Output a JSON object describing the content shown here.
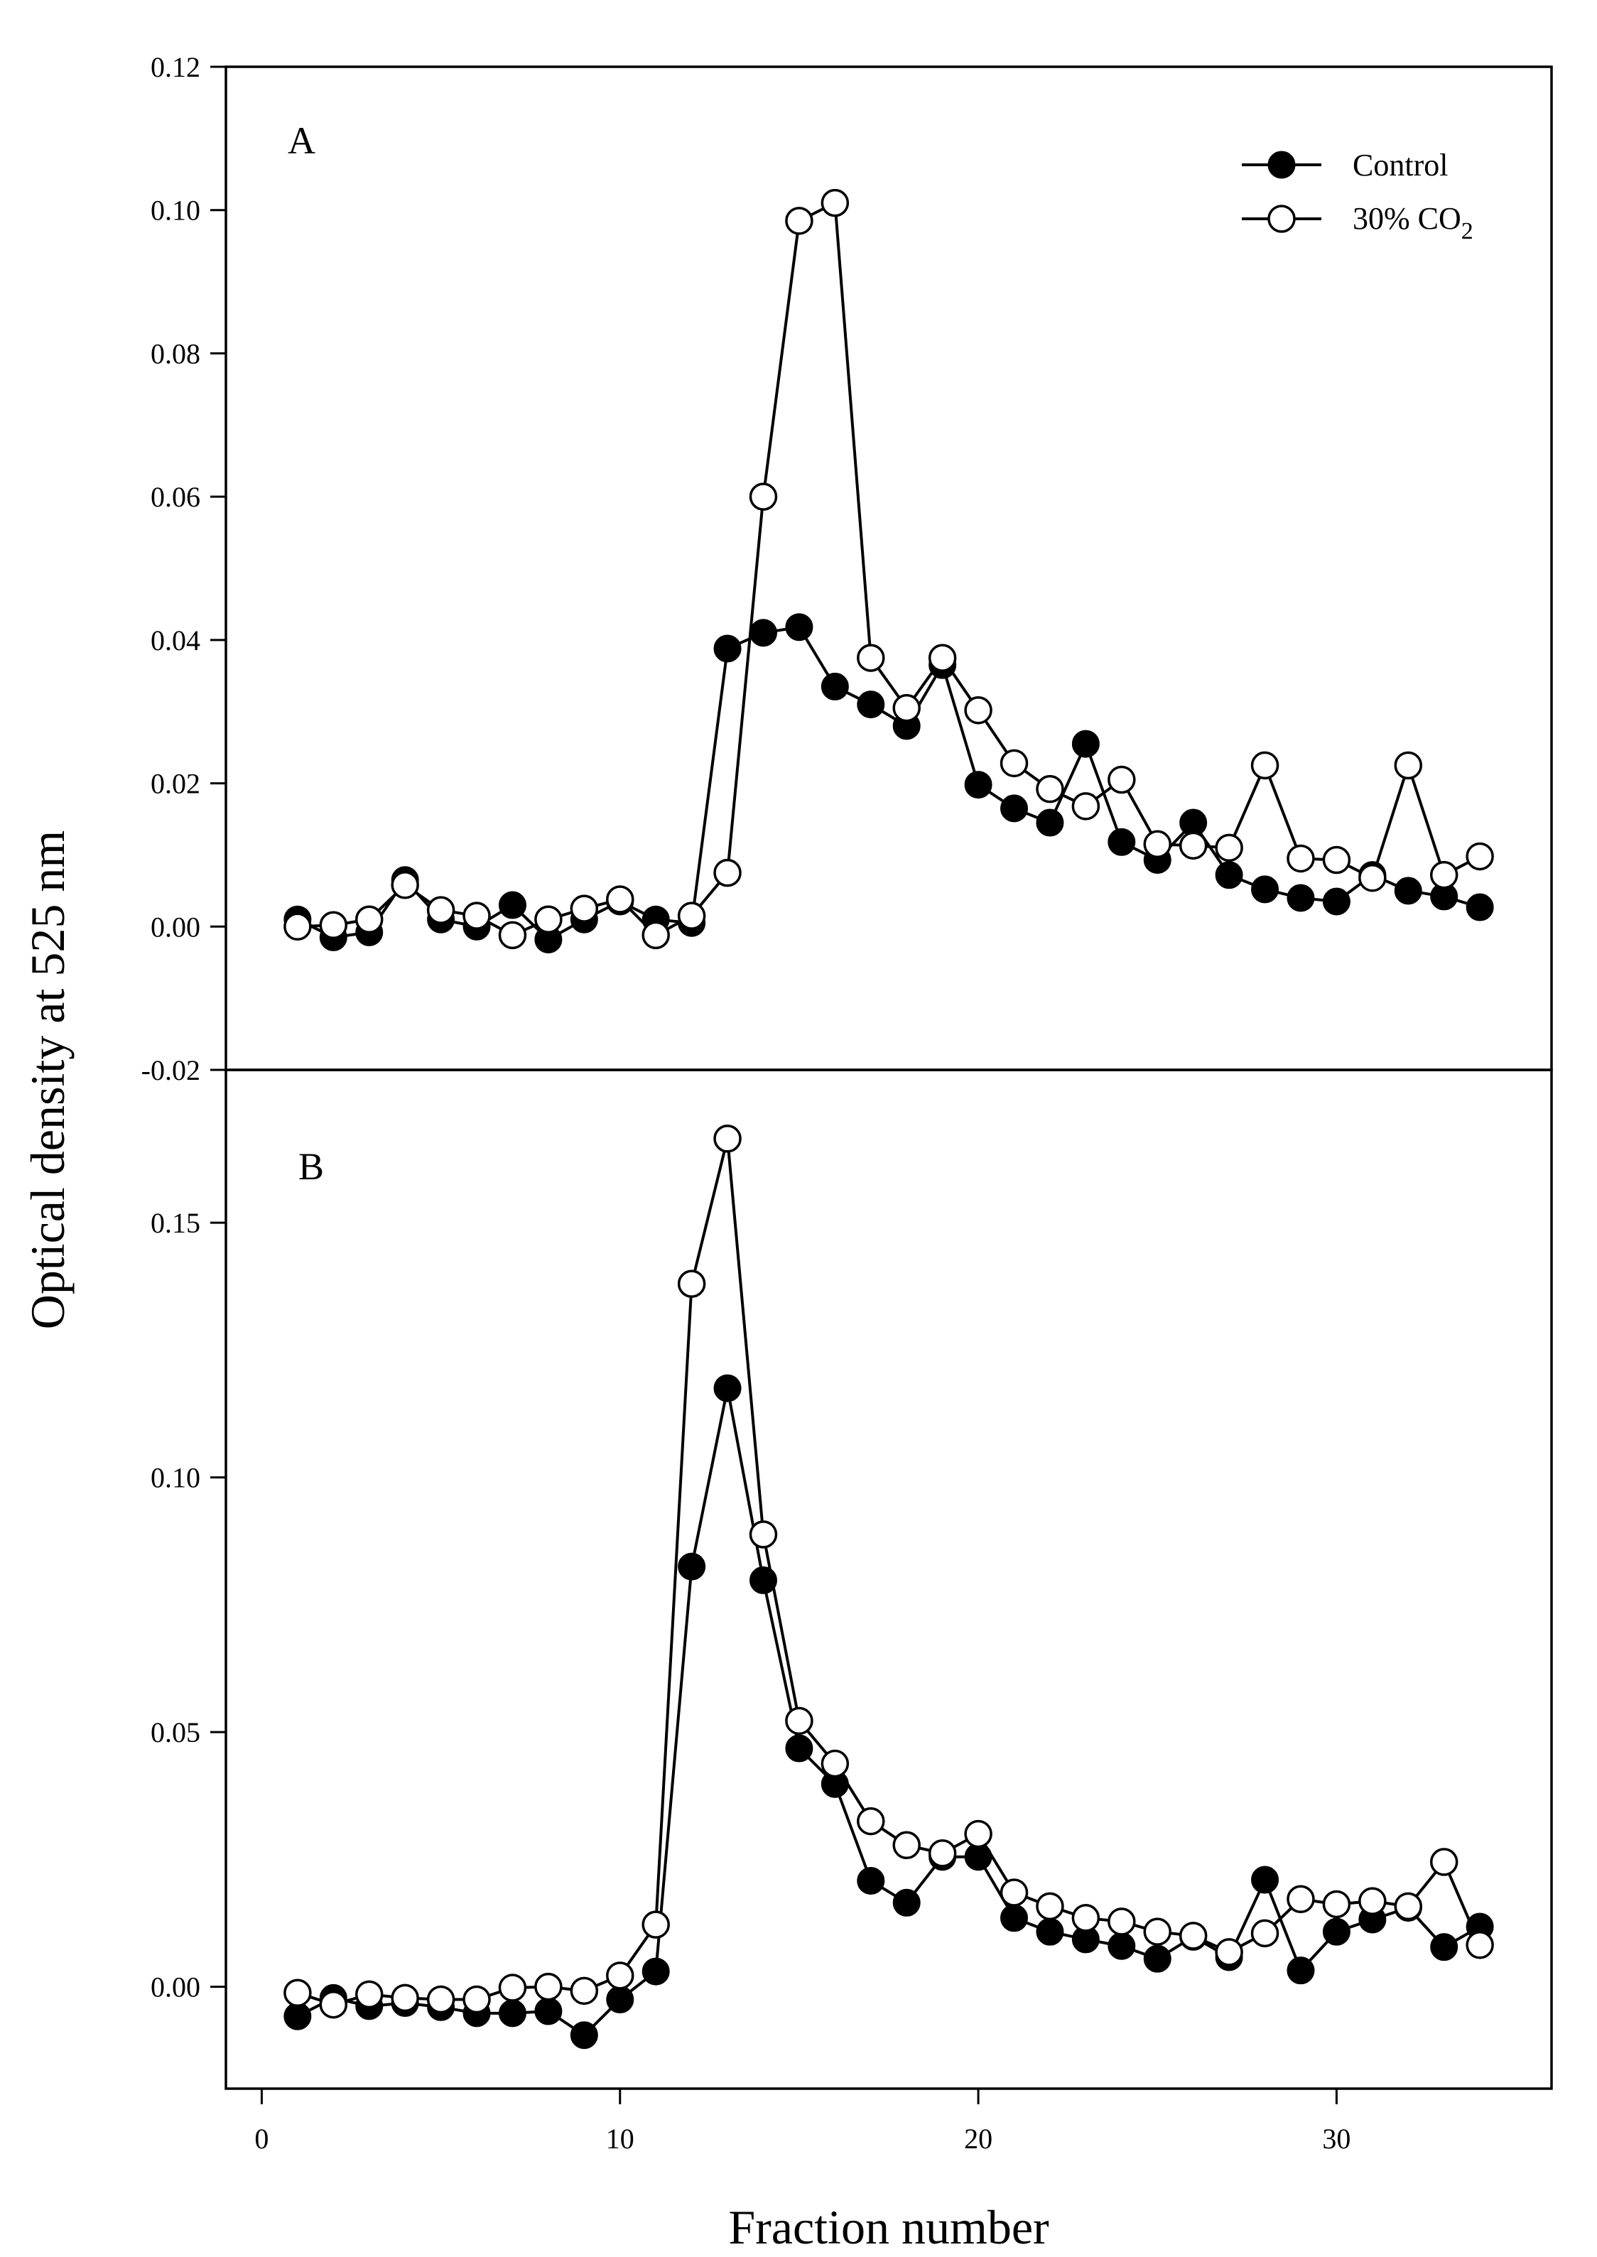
{
  "chart_data": {
    "type": "line",
    "ylabel": "Optical density at 525 nm",
    "xlabel": "Fraction number",
    "xlim": [
      -1,
      36
    ],
    "xticks": [
      0,
      10,
      20,
      30
    ],
    "legend": {
      "placement": "top-right",
      "entries": [
        {
          "name": "Control",
          "marker": "filled-circle"
        },
        {
          "name": "30% CO",
          "sub": "2",
          "marker": "open-circle"
        }
      ]
    },
    "panels": [
      {
        "letter": "A",
        "ylim": [
          -0.02,
          0.12
        ],
        "yticks": [
          -0.02,
          0.0,
          0.02,
          0.04,
          0.06,
          0.08,
          0.1,
          0.12
        ],
        "ytick_labels": [
          "-0.02",
          "0.00",
          "0.02",
          "0.04",
          "0.06",
          "0.08",
          "0.10",
          "0.12"
        ],
        "x": [
          1,
          2,
          3,
          4,
          5,
          6,
          7,
          8,
          9,
          10,
          11,
          12,
          13,
          14,
          15,
          16,
          17,
          18,
          19,
          20,
          21,
          22,
          23,
          24,
          25,
          26,
          27,
          28,
          29,
          30,
          31,
          32,
          33,
          34
        ],
        "series": [
          {
            "name": "Control",
            "values": [
              0.001,
              -0.0015,
              -0.0008,
              0.0065,
              0.001,
              0.0,
              0.003,
              -0.0018,
              0.001,
              0.0035,
              0.001,
              0.0005,
              0.0388,
              0.041,
              0.0418,
              0.0335,
              0.031,
              0.028,
              0.0365,
              0.0198,
              0.0165,
              0.0145,
              0.0255,
              0.0118,
              0.0093,
              0.0145,
              0.0072,
              0.0052,
              0.004,
              0.0035,
              0.0072,
              0.005,
              0.0042,
              0.0027
            ]
          },
          {
            "name": "30% CO2",
            "values": [
              0.0,
              0.0002,
              0.001,
              0.0058,
              0.0023,
              0.0015,
              -0.0012,
              0.001,
              0.0025,
              0.0038,
              -0.0012,
              0.0015,
              0.0075,
              0.06,
              0.0985,
              0.101,
              0.0375,
              0.0305,
              0.0375,
              0.0302,
              0.0228,
              0.0192,
              0.0168,
              0.0205,
              0.0115,
              0.0113,
              0.011,
              0.0225,
              0.0095,
              0.0093,
              0.0068,
              0.0225,
              0.0072,
              0.0098
            ]
          }
        ]
      },
      {
        "letter": "B",
        "ylim": [
          -0.02,
          0.18
        ],
        "yticks": [
          0.0,
          0.05,
          0.1,
          0.15
        ],
        "ytick_labels": [
          "0.00",
          "0.05",
          "0.10",
          "0.15"
        ],
        "x": [
          1,
          2,
          3,
          4,
          5,
          6,
          7,
          8,
          9,
          10,
          11,
          12,
          13,
          14,
          15,
          16,
          17,
          18,
          19,
          20,
          21,
          22,
          23,
          24,
          25,
          26,
          27,
          28,
          29,
          30,
          31,
          32,
          33,
          34
        ],
        "series": [
          {
            "name": "Control",
            "values": [
              -0.0058,
              -0.0022,
              -0.0038,
              -0.0032,
              -0.004,
              -0.0052,
              -0.0052,
              -0.0048,
              -0.0095,
              -0.0025,
              0.003,
              0.0825,
              0.1175,
              0.0798,
              0.0468,
              0.0398,
              0.0208,
              0.0165,
              0.0255,
              0.0255,
              0.0135,
              0.0108,
              0.0093,
              0.008,
              0.0055,
              0.0098,
              0.0058,
              0.021,
              0.0032,
              0.0108,
              0.0132,
              0.0155,
              0.0078,
              0.0118
            ]
          },
          {
            "name": "30% CO2",
            "values": [
              -0.0012,
              -0.0035,
              -0.0015,
              -0.0022,
              -0.0025,
              -0.0025,
              -0.0002,
              0.0,
              -0.0008,
              0.0022,
              0.0122,
              0.138,
              0.1665,
              0.0888,
              0.0522,
              0.0438,
              0.0325,
              0.0278,
              0.0262,
              0.03,
              0.0185,
              0.0158,
              0.0135,
              0.0128,
              0.0108,
              0.01,
              0.0068,
              0.0105,
              0.0172,
              0.0162,
              0.0168,
              0.0158,
              0.0245,
              0.0082
            ]
          }
        ]
      }
    ]
  }
}
